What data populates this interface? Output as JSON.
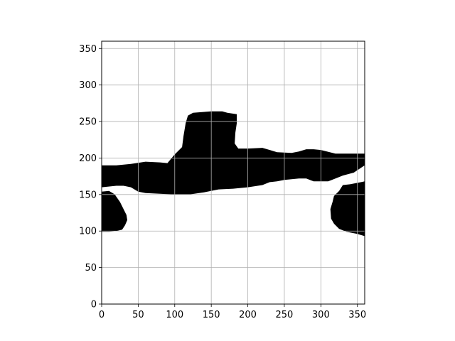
{
  "chart_data": {
    "type": "heatmap",
    "title": "",
    "xlabel": "",
    "ylabel": "",
    "xlim": [
      0,
      360
    ],
    "ylim": [
      0,
      360
    ],
    "grid": true,
    "x_ticks": [
      0,
      50,
      100,
      150,
      200,
      250,
      300,
      350
    ],
    "y_ticks": [
      0,
      50,
      100,
      150,
      200,
      250,
      300,
      350
    ],
    "colors": {
      "filled": "#000000",
      "empty": "#ffffff",
      "grid": "#b0b0b0"
    },
    "regions": [
      {
        "name": "main-band",
        "polygon": [
          [
            0,
            190
          ],
          [
            20,
            190
          ],
          [
            40,
            192
          ],
          [
            60,
            195
          ],
          [
            80,
            194
          ],
          [
            90,
            193
          ],
          [
            100,
            205
          ],
          [
            110,
            215
          ],
          [
            112,
            230
          ],
          [
            115,
            248
          ],
          [
            118,
            258
          ],
          [
            125,
            262
          ],
          [
            150,
            264
          ],
          [
            165,
            264
          ],
          [
            172,
            262
          ],
          [
            185,
            260
          ],
          [
            185,
            248
          ],
          [
            183,
            235
          ],
          [
            182,
            220
          ],
          [
            187,
            213
          ],
          [
            200,
            213
          ],
          [
            220,
            214
          ],
          [
            240,
            208
          ],
          [
            260,
            207
          ],
          [
            270,
            209
          ],
          [
            280,
            212
          ],
          [
            290,
            212
          ],
          [
            300,
            211
          ],
          [
            320,
            206
          ],
          [
            350,
            206
          ],
          [
            360,
            206
          ],
          [
            360,
            190
          ],
          [
            345,
            180
          ],
          [
            330,
            176
          ],
          [
            320,
            172
          ],
          [
            310,
            168
          ],
          [
            300,
            168
          ],
          [
            290,
            168
          ],
          [
            280,
            172
          ],
          [
            270,
            172
          ],
          [
            250,
            170
          ],
          [
            240,
            168
          ],
          [
            230,
            167
          ],
          [
            220,
            163
          ],
          [
            200,
            160
          ],
          [
            180,
            158
          ],
          [
            160,
            157
          ],
          [
            140,
            153
          ],
          [
            120,
            150
          ],
          [
            100,
            150
          ],
          [
            80,
            151
          ],
          [
            60,
            152
          ],
          [
            50,
            154
          ],
          [
            40,
            160
          ],
          [
            30,
            162
          ],
          [
            20,
            162
          ],
          [
            0,
            160
          ]
        ]
      },
      {
        "name": "left-blob",
        "polygon": [
          [
            0,
            154
          ],
          [
            10,
            155
          ],
          [
            15,
            152
          ],
          [
            18,
            150
          ],
          [
            20,
            147
          ],
          [
            25,
            140
          ],
          [
            30,
            130
          ],
          [
            34,
            122
          ],
          [
            35,
            115
          ],
          [
            32,
            108
          ],
          [
            28,
            102
          ],
          [
            20,
            100
          ],
          [
            10,
            99
          ],
          [
            0,
            99
          ]
        ]
      },
      {
        "name": "right-blob",
        "polygon": [
          [
            360,
            168
          ],
          [
            350,
            166
          ],
          [
            340,
            164
          ],
          [
            330,
            163
          ],
          [
            325,
            155
          ],
          [
            318,
            148
          ],
          [
            316,
            140
          ],
          [
            313,
            130
          ],
          [
            314,
            117
          ],
          [
            318,
            110
          ],
          [
            325,
            103
          ],
          [
            335,
            99
          ],
          [
            350,
            96
          ],
          [
            360,
            93
          ]
        ]
      }
    ]
  }
}
